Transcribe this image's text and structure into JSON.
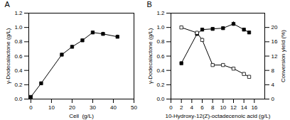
{
  "chart_data": [
    {
      "type": "line",
      "title": "A",
      "x": [
        0,
        5,
        15,
        20,
        25,
        30,
        35,
        42
      ],
      "series": [
        {
          "color": "black",
          "marker": "square",
          "line_style": "solid",
          "values": [
            0.03,
            0.22,
            0.62,
            0.73,
            0.82,
            0.93,
            0.91,
            0.87
          ],
          "yerr": [
            0.01,
            0.015,
            0.02,
            0.02,
            0.02,
            0.02,
            0.025,
            0.025
          ]
        }
      ],
      "xlabel": "Cell  (g/L)",
      "ylabel": "γ-Dodecalactone (g/L)",
      "xlim": [
        -1,
        50
      ],
      "ylim": [
        0,
        1.2
      ],
      "xticks": [
        0,
        10,
        20,
        30,
        40,
        50
      ],
      "yticks": [
        {
          "value": 0,
          "label": "0.0"
        },
        0.2,
        0.4,
        0.6,
        0.8,
        {
          "value": 1,
          "label": "1.0"
        },
        1.2
      ],
      "grid": false
    },
    {
      "type": "line",
      "title": "B",
      "x": [
        2,
        5,
        6,
        8,
        10,
        12,
        14,
        15
      ],
      "series": [
        {
          "color": "black",
          "marker": "square",
          "line_style": "solid",
          "values": [
            0.5,
            0.91,
            0.97,
            0.98,
            0.99,
            1.05,
            0.97,
            0.93
          ],
          "yerr": [
            0.02,
            0.02,
            0.02,
            0.02,
            0.02,
            0.03,
            0.02,
            0.02
          ]
        },
        {
          "color": "black",
          "marker": "square-open",
          "line_style": "solid",
          "axis": "y2",
          "values": [
            20.0,
            18.5,
            16.5,
            9.5,
            9.5,
            8.5,
            7.0,
            6.2
          ],
          "yerr": [
            0.4,
            0.4,
            0.5,
            0.4,
            0.4,
            0.4,
            0.4,
            0.4
          ]
        }
      ],
      "xlabel": "10-Hydroxy-12(Z)-octadecenoic acid (g/L)",
      "ylabel": "γ-Dodecalactone (g/L)",
      "y2label": "Conversion yield (%)",
      "xlim": [
        0,
        18
      ],
      "ylim": [
        0,
        1.2
      ],
      "y2lim": [
        0,
        24
      ],
      "xticks": [
        0,
        2,
        4,
        6,
        8,
        10,
        12,
        14,
        16
      ],
      "yticks": [
        {
          "value": 0,
          "label": "0.0"
        },
        0.2,
        0.4,
        0.6,
        0.8,
        {
          "value": 1,
          "label": "1.0"
        },
        1.2
      ],
      "y2ticks": [
        0,
        4,
        8,
        12,
        16,
        20
      ],
      "grid": false
    }
  ]
}
